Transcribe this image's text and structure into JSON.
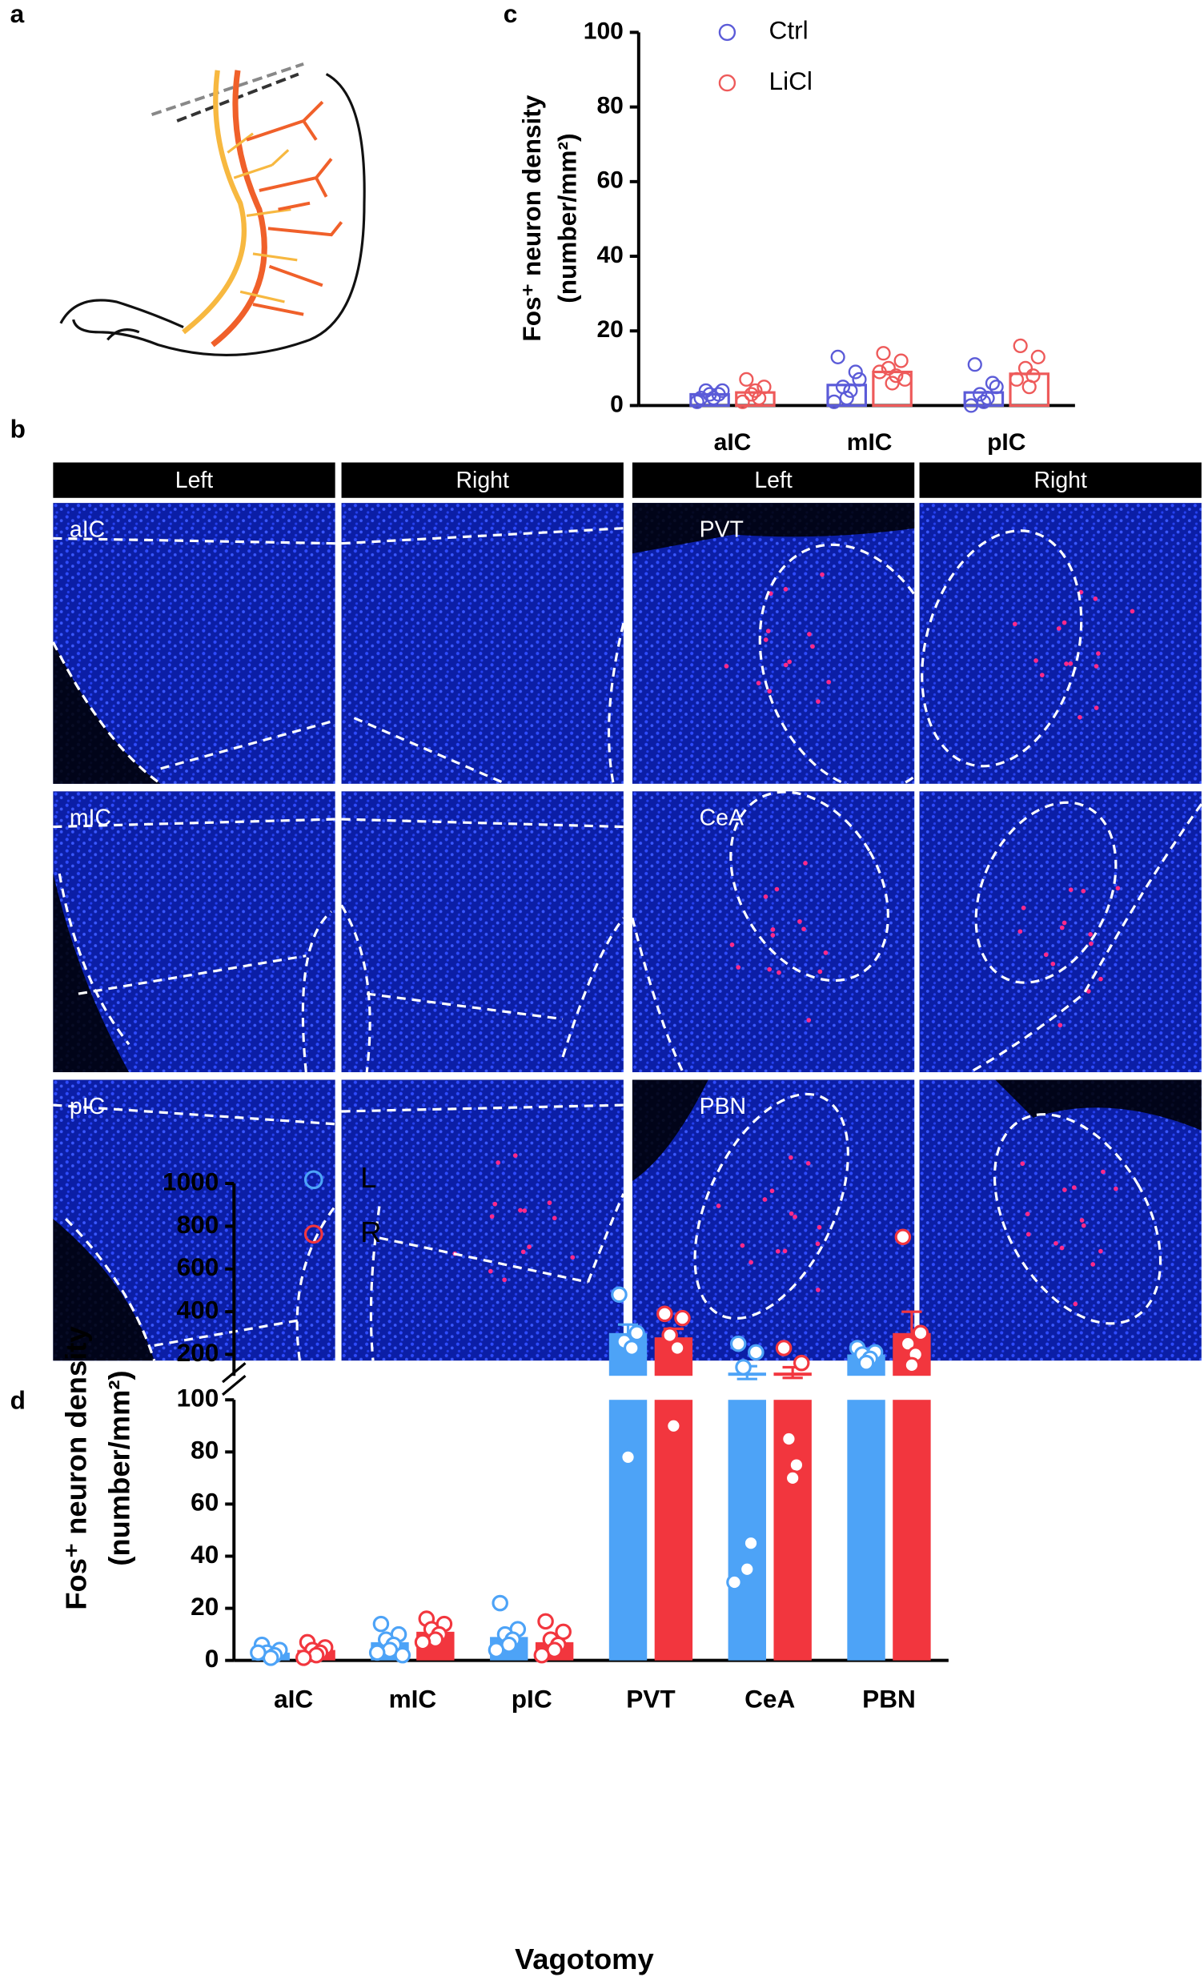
{
  "panel_labels": [
    "a",
    "b",
    "c",
    "d"
  ],
  "micrographs": {
    "headers": [
      "Left",
      "Right",
      "Left",
      "Right"
    ],
    "labels": [
      [
        "aIC",
        "PVT"
      ],
      [
        "mIC",
        "CeA"
      ],
      [
        "pIC",
        "PBN"
      ]
    ]
  },
  "chart_data": [
    {
      "type": "bar",
      "y_label": [
        "Fos⁺ neuron density",
        "(number/mm²)"
      ],
      "categories": [
        "aIC",
        "mIC",
        "pIC"
      ],
      "ylim": [
        0,
        100
      ],
      "yticks": [
        0,
        20,
        40,
        60,
        80,
        100
      ],
      "legend": "top-left",
      "series": [
        {
          "name": "Ctrl",
          "color": "#5b5bd8",
          "values": [
            3,
            5.5,
            3.5
          ],
          "points": [
            [
              2,
              3,
              4,
              2,
              3,
              1,
              4
            ],
            [
              13,
              9,
              5,
              4,
              2,
              1,
              7
            ],
            [
              11,
              6,
              3,
              2,
              1,
              0,
              5
            ]
          ]
        },
        {
          "name": "LiCl",
          "color": "#ee5a5a",
          "values": [
            3.5,
            9,
            8.5
          ],
          "points": [
            [
              7,
              5,
              3,
              2,
              4,
              1
            ],
            [
              14,
              12,
              10,
              8,
              6,
              9,
              7
            ],
            [
              16,
              13,
              10,
              8,
              5,
              7
            ]
          ]
        }
      ]
    },
    {
      "type": "broken-bar",
      "y_label": [
        "Fos⁺ neuron density",
        "(number/mm²)"
      ],
      "x_label": "Vagotomy",
      "categories": [
        "aIC",
        "mIC",
        "pIC",
        "PVT",
        "CeA",
        "PBN"
      ],
      "y_segments": [
        {
          "ylim": [
            0,
            100
          ],
          "yticks": [
            0,
            20,
            40,
            60,
            80,
            100
          ]
        },
        {
          "ylim": [
            100,
            1000
          ],
          "yticks": [
            200,
            400,
            600,
            800,
            1000
          ]
        }
      ],
      "legend": "top-left",
      "series": [
        {
          "name": "L",
          "color": "#4da3f7",
          "values": [
            3,
            7,
            9,
            300,
            115,
            200
          ],
          "errors": [
            1,
            1.5,
            2,
            40,
            30,
            20
          ],
          "points": [
            [
              6,
              4,
              3,
              2,
              1,
              3
            ],
            [
              14,
              10,
              8,
              6,
              4,
              3,
              2
            ],
            [
              22,
              12,
              10,
              8,
              6,
              4
            ],
            [
              480,
              300,
              260,
              230,
              78
            ],
            [
              250,
              210,
              140,
              45,
              35,
              30
            ],
            [
              230,
              210,
              200,
              180,
              160
            ]
          ]
        },
        {
          "name": "R",
          "color": "#f2363e",
          "values": [
            4,
            11,
            7,
            280,
            115,
            300
          ],
          "errors": [
            1,
            1.5,
            2,
            40,
            25,
            100
          ],
          "points": [
            [
              7,
              5,
              4,
              3,
              2,
              1
            ],
            [
              16,
              14,
              12,
              10,
              8,
              7
            ],
            [
              15,
              11,
              8,
              6,
              4,
              2
            ],
            [
              390,
              370,
              290,
              230,
              90
            ],
            [
              230,
              160,
              85,
              75,
              70
            ],
            [
              750,
              300,
              250,
              200,
              150
            ]
          ]
        }
      ]
    }
  ]
}
